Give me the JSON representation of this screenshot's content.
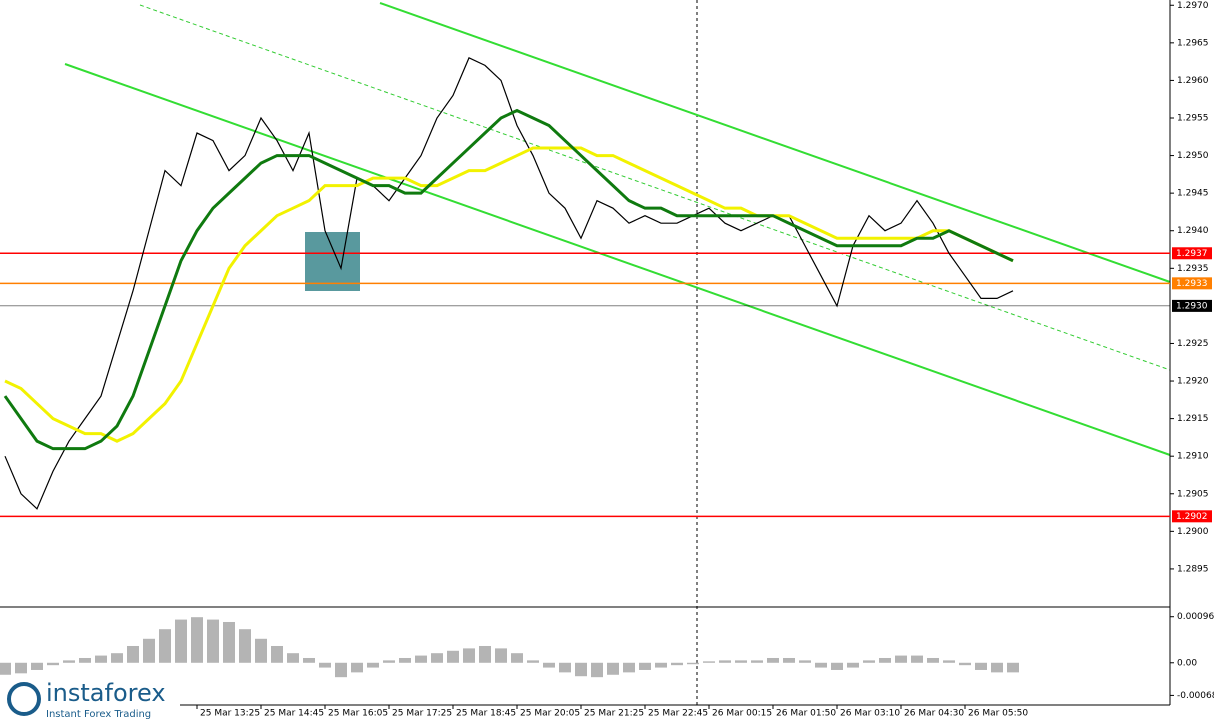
{
  "chart_data": {
    "type": "line",
    "categories": [
      null,
      null,
      null,
      null,
      null,
      null,
      null,
      null,
      null,
      null,
      null,
      null,
      "25 Mar 13:25",
      null,
      null,
      null,
      "25 Mar 14:45",
      null,
      null,
      null,
      "25 Mar 16:05",
      null,
      null,
      null,
      "25 Mar 17:25",
      null,
      null,
      null,
      "25 Mar 18:45",
      null,
      null,
      null,
      "25 Mar 20:05",
      null,
      null,
      null,
      "25 Mar 21:25",
      null,
      null,
      null,
      "25 Mar 22:45",
      null,
      null,
      null,
      "26 Mar 00:15",
      null,
      null,
      null,
      "26 Mar 01:50",
      null,
      null,
      null,
      "26 Mar 03:10",
      null,
      null,
      null,
      "26 Mar 04:30",
      null,
      null,
      null,
      "26 Mar 05:50",
      null,
      null,
      null
    ],
    "series": [
      {
        "color": "#000000",
        "values": [
          1.291,
          1.2905,
          1.2903,
          1.2908,
          1.2912,
          1.2915,
          1.2918,
          1.2925,
          1.2932,
          1.294,
          1.2948,
          1.2946,
          1.2953,
          1.2952,
          1.2948,
          1.295,
          1.2955,
          1.2952,
          1.2948,
          1.2953,
          1.294,
          1.2935,
          1.2947,
          1.2946,
          1.2944,
          1.2947,
          1.295,
          1.2955,
          1.2958,
          1.2963,
          1.2962,
          1.296,
          1.2954,
          1.295,
          1.2945,
          1.2943,
          1.2939,
          1.2944,
          1.2943,
          1.2941,
          1.2942,
          1.2941,
          1.2941,
          1.2942,
          1.2943,
          1.2941,
          1.294,
          1.2941,
          1.2942,
          1.2942,
          1.2938,
          1.2934,
          1.293,
          1.2938,
          1.2942,
          1.294,
          1.2941,
          1.2944,
          1.2941,
          1.2937,
          1.2934,
          1.2931,
          1.2931,
          1.2932
        ]
      },
      {
        "color": "#f2f200",
        "values": [
          1.292,
          1.2919,
          1.2917,
          1.2915,
          1.2914,
          1.2913,
          1.2913,
          1.2912,
          1.2913,
          1.2915,
          1.2917,
          1.292,
          1.2925,
          1.293,
          1.2935,
          1.2938,
          1.294,
          1.2942,
          1.2943,
          1.2944,
          1.2946,
          1.2946,
          1.2946,
          1.2947,
          1.2947,
          1.2947,
          1.2946,
          1.2946,
          1.2947,
          1.2948,
          1.2948,
          1.2949,
          1.295,
          1.2951,
          1.2951,
          1.2951,
          1.2951,
          1.295,
          1.295,
          1.2949,
          1.2948,
          1.2947,
          1.2946,
          1.2945,
          1.2944,
          1.2943,
          1.2943,
          1.2942,
          1.2942,
          1.2942,
          1.2941,
          1.294,
          1.2939,
          1.2939,
          1.2939,
          1.2939,
          1.2939,
          1.2939,
          1.294,
          1.294,
          1.2939,
          1.2938,
          1.2937,
          1.2936
        ]
      },
      {
        "color": "#0f7a0f",
        "values": [
          1.2918,
          1.2915,
          1.2912,
          1.2911,
          1.2911,
          1.2911,
          1.2912,
          1.2914,
          1.2918,
          1.2924,
          1.293,
          1.2936,
          1.294,
          1.2943,
          1.2945,
          1.2947,
          1.2949,
          1.295,
          1.295,
          1.295,
          1.2949,
          1.2948,
          1.2947,
          1.2946,
          1.2946,
          1.2945,
          1.2945,
          1.2947,
          1.2949,
          1.2951,
          1.2953,
          1.2955,
          1.2956,
          1.2955,
          1.2954,
          1.2952,
          1.295,
          1.2948,
          1.2946,
          1.2944,
          1.2943,
          1.2943,
          1.2942,
          1.2942,
          1.2942,
          1.2942,
          1.2942,
          1.2942,
          1.2942,
          1.2941,
          1.294,
          1.2939,
          1.2938,
          1.2938,
          1.2938,
          1.2938,
          1.2938,
          1.2939,
          1.2939,
          1.294,
          1.2939,
          1.2938,
          1.2937,
          1.2936
        ]
      }
    ],
    "ylim": [
      1.28902,
      1.29707
    ],
    "yticks": [
      {
        "value": 1.297,
        "label": "1.2970"
      },
      {
        "value": 1.2965,
        "label": "1.2965"
      },
      {
        "value": 1.296,
        "label": "1.2960"
      },
      {
        "value": 1.2955,
        "label": "1.2955"
      },
      {
        "value": 1.295,
        "label": "1.2950"
      },
      {
        "value": 1.2945,
        "label": "1.2945"
      },
      {
        "value": 1.294,
        "label": "1.2940"
      },
      {
        "value": 1.2935,
        "label": "1.2935"
      },
      {
        "value": 1.2925,
        "label": "1.2925"
      },
      {
        "value": 1.292,
        "label": "1.2920"
      },
      {
        "value": 1.2915,
        "label": "1.2915"
      },
      {
        "value": 1.291,
        "label": "1.2910"
      },
      {
        "value": 1.2905,
        "label": "1.2905"
      },
      {
        "value": 1.29,
        "label": "1.2900"
      },
      {
        "value": 1.2895,
        "label": "1.2895"
      }
    ],
    "levels": [
      {
        "value": 1.2937,
        "label": "1.2937",
        "color": "#ff0000"
      },
      {
        "value": 1.2933,
        "label": "1.2933",
        "color": "#ff7f00"
      },
      {
        "value": 1.293,
        "label": "1.2930",
        "color": "#000000"
      },
      {
        "value": 1.2902,
        "label": "1.2902",
        "color": "#ff0000"
      }
    ],
    "macd": {
      "color": "#b4b4b4",
      "values": [
        -0.00025,
        -0.00022,
        -0.00015,
        -5e-05,
        5e-05,
        0.0001,
        0.00015,
        0.0002,
        0.00035,
        0.0005,
        0.0007,
        0.0009,
        0.00095,
        0.0009,
        0.00085,
        0.0007,
        0.0005,
        0.00035,
        0.0002,
        0.0001,
        -0.0001,
        -0.0003,
        -0.0002,
        -0.0001,
        5e-05,
        0.0001,
        0.00015,
        0.0002,
        0.00025,
        0.0003,
        0.00035,
        0.0003,
        0.0002,
        5e-05,
        -0.0001,
        -0.0002,
        -0.00028,
        -0.0003,
        -0.00025,
        -0.0002,
        -0.00015,
        -0.0001,
        -5e-05,
        -3e-05,
        3e-05,
        5e-05,
        5e-05,
        5e-05,
        0.0001,
        0.0001,
        5e-05,
        -0.0001,
        -0.00015,
        -0.0001,
        5e-05,
        0.0001,
        0.00015,
        0.00015,
        0.0001,
        5e-05,
        -5e-05,
        -0.00015,
        -0.0002,
        -0.0002
      ],
      "ylim": [
        -0.00088,
        0.0011
      ],
      "yticks": [
        {
          "value": 0.00096,
          "label": "0.00096"
        },
        {
          "value": 0,
          "label": "0.00"
        },
        {
          "value": -0.00068,
          "label": "-0.00068"
        }
      ]
    },
    "logo": {
      "name": "instaforex",
      "tagline": "Instant Forex Trading"
    }
  }
}
